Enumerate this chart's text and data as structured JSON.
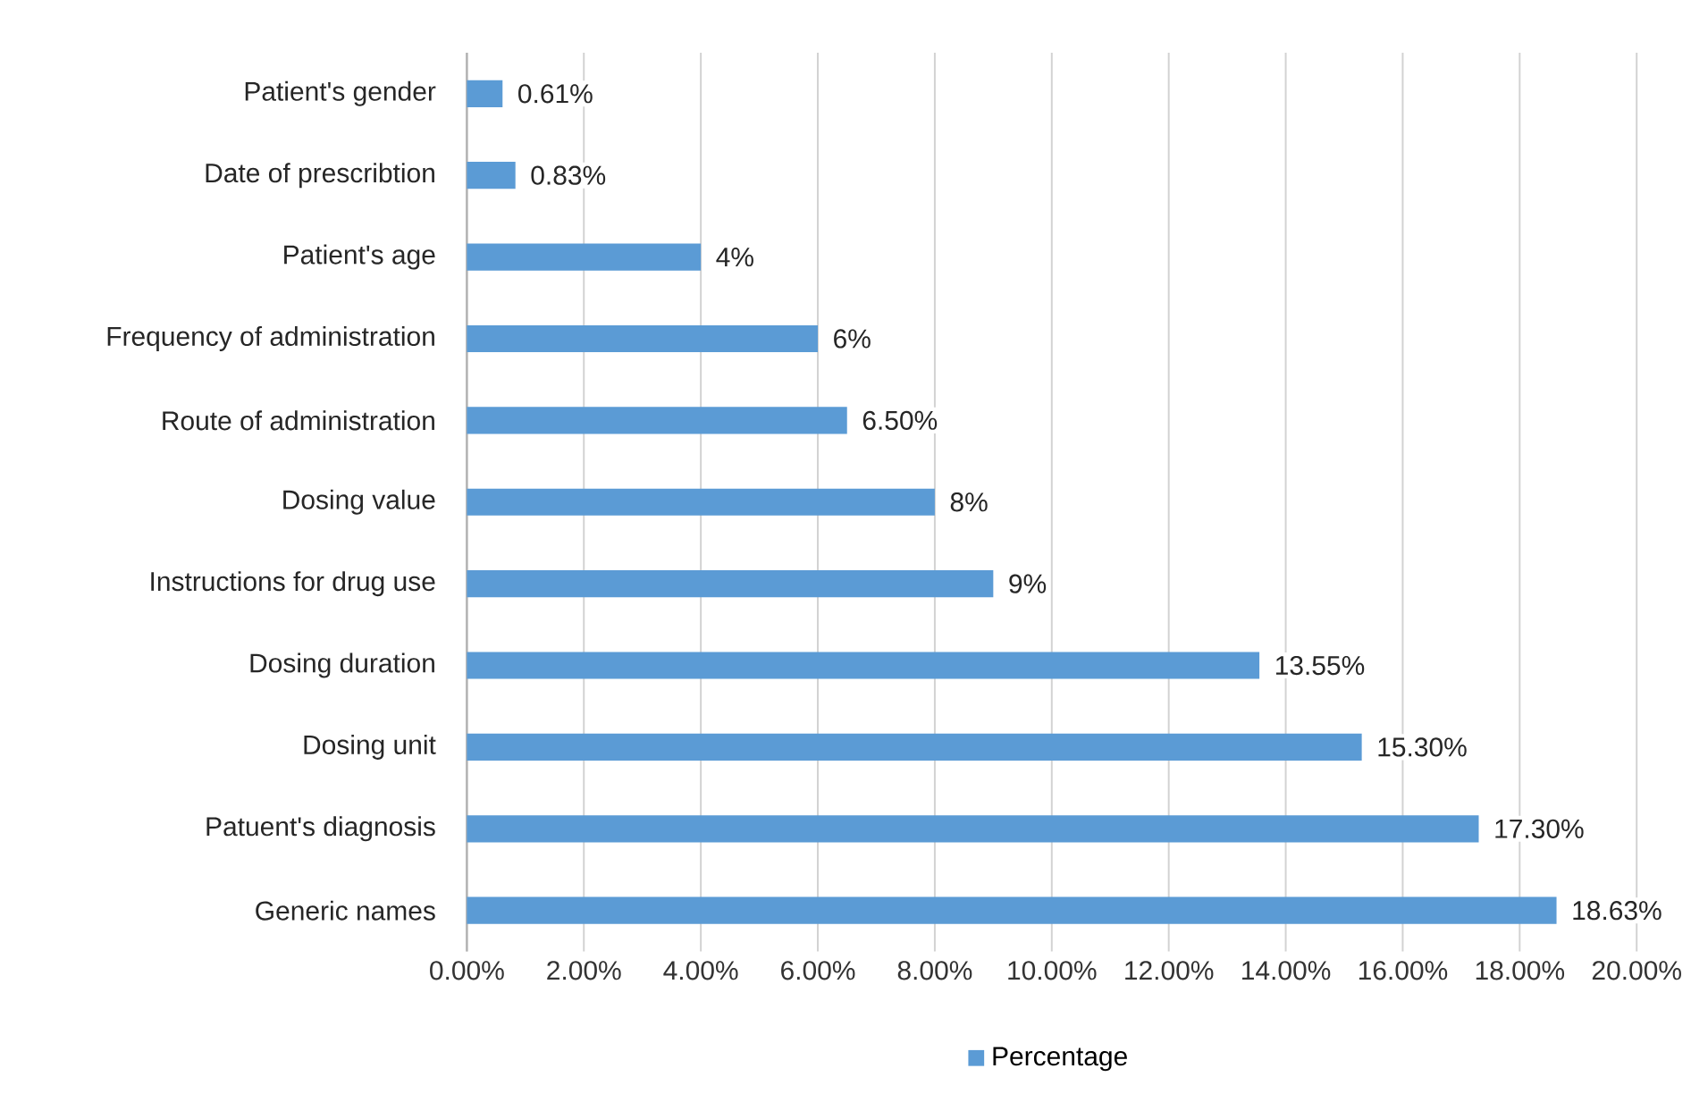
{
  "chart_data": {
    "type": "bar",
    "orientation": "horizontal",
    "categories": [
      "Patient's gender",
      "Date of prescribtion",
      "Patient's age",
      "Frequency of administration",
      "Route of administration",
      "Dosing value",
      "Instructions for drug use",
      "Dosing duration",
      "Dosing unit",
      "Patuent's diagnosis",
      "Generic names"
    ],
    "series": [
      {
        "name": "Percentage",
        "color": "#5b9bd5",
        "values": [
          0.61,
          0.83,
          4,
          6,
          6.5,
          8,
          9,
          13.55,
          15.3,
          17.3,
          18.63
        ],
        "value_labels": [
          "0.61%",
          "0.83%",
          "4%",
          "6%",
          "6.50%",
          "8%",
          "9%",
          "13.55%",
          "15.30%",
          "17.30%",
          "18.63%"
        ]
      }
    ],
    "xlim": [
      0,
      20
    ],
    "xticks": [
      {
        "value": 0,
        "label": "0.00%"
      },
      {
        "value": 2,
        "label": "2.00%"
      },
      {
        "value": 4,
        "label": "4.00%"
      },
      {
        "value": 6,
        "label": "6.00%"
      },
      {
        "value": 8,
        "label": "8.00%"
      },
      {
        "value": 10,
        "label": "10.00%"
      },
      {
        "value": 12,
        "label": "12.00%"
      },
      {
        "value": 14,
        "label": "14.00%"
      },
      {
        "value": 16,
        "label": "16.00%"
      },
      {
        "value": 18,
        "label": "18.00%"
      },
      {
        "value": 20,
        "label": "20.00%"
      }
    ],
    "grid": "x",
    "legend": "bottom"
  }
}
